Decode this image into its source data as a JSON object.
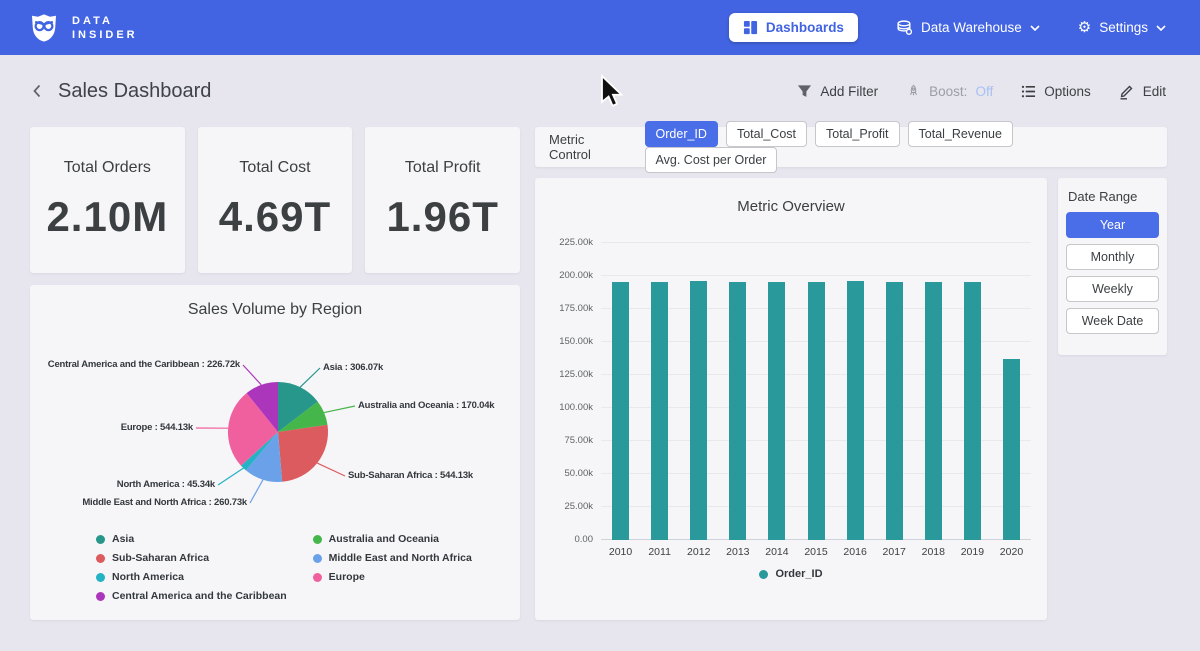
{
  "theme": {
    "navbar_color": "#4264e2",
    "accent_color": "#4a6de8",
    "boost_off_color": "#a8c1f2"
  },
  "navbar": {
    "brand_line1": "DATA",
    "brand_line2": "INSIDER",
    "dashboards_label": "Dashboards",
    "data_warehouse_label": "Data Warehouse",
    "settings_label": "Settings"
  },
  "header": {
    "title": "Sales Dashboard",
    "add_filter_label": "Add Filter",
    "boost_label": "Boost:",
    "boost_state": "Off",
    "options_label": "Options",
    "edit_label": "Edit"
  },
  "kpis": [
    {
      "label": "Total Orders",
      "value": "2.10M"
    },
    {
      "label": "Total Cost",
      "value": "4.69T"
    },
    {
      "label": "Total Profit",
      "value": "1.96T"
    }
  ],
  "metric_control": {
    "label": "Metric Control",
    "options": [
      {
        "label": "Order_ID",
        "selected": true
      },
      {
        "label": "Total_Cost",
        "selected": false
      },
      {
        "label": "Total_Profit",
        "selected": false
      },
      {
        "label": "Total_Revenue",
        "selected": false
      },
      {
        "label": "Avg. Cost per Order",
        "selected": false
      }
    ]
  },
  "date_range": {
    "label": "Date Range",
    "options": [
      {
        "label": "Year",
        "selected": true
      },
      {
        "label": "Monthly",
        "selected": false
      },
      {
        "label": "Weekly",
        "selected": false
      },
      {
        "label": "Week Date",
        "selected": false
      }
    ]
  },
  "chart_data": [
    {
      "type": "pie",
      "title": "Sales Volume by Region",
      "unit": "k",
      "slices": [
        {
          "name": "Asia",
          "value": 306.07,
          "label": "Asia : 306.07k",
          "color": "#27968b",
          "label_pos": {
            "x": 293,
            "y": 83,
            "anchor": "start"
          }
        },
        {
          "name": "Australia and Oceania",
          "value": 170.04,
          "label": "Australia and Oceania : 170.04k",
          "color": "#45b649",
          "label_pos": {
            "x": 328,
            "y": 121,
            "anchor": "start"
          }
        },
        {
          "name": "Sub-Saharan Africa",
          "value": 544.13,
          "label": "Sub-Saharan Africa : 544.13k",
          "color": "#dc5b5e",
          "label_pos": {
            "x": 318,
            "y": 191,
            "anchor": "start"
          }
        },
        {
          "name": "Middle East and North Africa",
          "value": 260.73,
          "label": "Middle East and North Africa : 260.73k",
          "color": "#6ba1e9",
          "label_pos": {
            "x": 217,
            "y": 218,
            "anchor": "end"
          }
        },
        {
          "name": "North America",
          "value": 45.34,
          "label": "North America : 45.34k",
          "color": "#24b2c5",
          "label_pos": {
            "x": 185,
            "y": 200,
            "anchor": "end"
          }
        },
        {
          "name": "Europe",
          "value": 544.13,
          "label": "Europe : 544.13k",
          "color": "#f0609e",
          "label_pos": {
            "x": 163,
            "y": 143,
            "anchor": "end"
          }
        },
        {
          "name": "Central America and the Caribbean",
          "value": 226.72,
          "label": "Central America and the Caribbean : 226.72k",
          "color": "#ac36bb",
          "label_pos": {
            "x": 210,
            "y": 80,
            "anchor": "end"
          }
        }
      ],
      "legend_columns": [
        [
          "Asia",
          "Sub-Saharan Africa",
          "North America",
          "Central America and the Caribbean"
        ],
        [
          "Australia and Oceania",
          "Middle East and North Africa",
          "Europe"
        ]
      ],
      "legend_position": "bottom"
    },
    {
      "type": "bar",
      "title": "Metric Overview",
      "categories": [
        "2010",
        "2011",
        "2012",
        "2013",
        "2014",
        "2015",
        "2016",
        "2017",
        "2018",
        "2019",
        "2020"
      ],
      "series": [
        {
          "name": "Order_ID",
          "color": "#2a999c",
          "values": [
            195.5,
            195.4,
            196.2,
            195.5,
            195.3,
            195.4,
            196.3,
            195.6,
            195.5,
            195.6,
            136.9
          ]
        }
      ],
      "unit": "k",
      "ylim": [
        0,
        225
      ],
      "ytick_labels": [
        "0.00",
        "25.00k",
        "50.00k",
        "75.00k",
        "100.00k",
        "125.00k",
        "150.00k",
        "175.00k",
        "200.00k",
        "225.00k"
      ],
      "grid": true,
      "legend": [
        "Order_ID"
      ],
      "legend_position": "bottom"
    }
  ]
}
